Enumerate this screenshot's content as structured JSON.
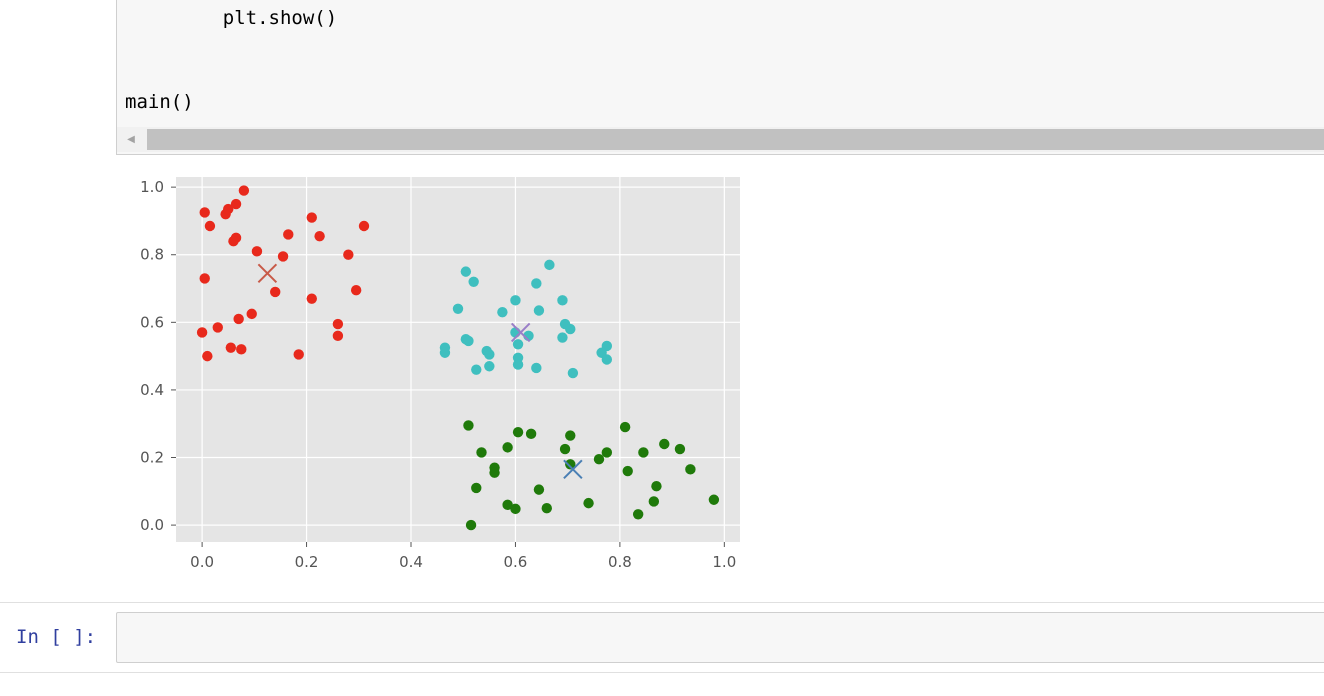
{
  "code_cell": {
    "lines": [
      "    plt.show()",
      "main()"
    ]
  },
  "input_cell": {
    "prompt": "In [ ]:",
    "value": ""
  },
  "chart_data": {
    "type": "scatter",
    "title": "",
    "xlabel": "",
    "ylabel": "",
    "xlim": [
      -0.05,
      1.03
    ],
    "ylim": [
      -0.05,
      1.03
    ],
    "x_ticks": [
      0.0,
      0.2,
      0.4,
      0.6,
      0.8,
      1.0
    ],
    "y_ticks": [
      0.0,
      0.2,
      0.4,
      0.6,
      0.8,
      1.0
    ],
    "x_tick_labels": [
      "0.0",
      "0.2",
      "0.4",
      "0.6",
      "0.8",
      "1.0"
    ],
    "y_tick_labels": [
      "0.0",
      "0.2",
      "0.4",
      "0.6",
      "0.8",
      "1.0"
    ],
    "grid": true,
    "background": "#e5e5e5",
    "series": [
      {
        "color": "#e8291c",
        "points": [
          [
            0.08,
            0.99
          ],
          [
            0.065,
            0.95
          ],
          [
            0.045,
            0.92
          ],
          [
            0.05,
            0.935
          ],
          [
            0.005,
            0.925
          ],
          [
            0.015,
            0.885
          ],
          [
            0.21,
            0.91
          ],
          [
            0.31,
            0.885
          ],
          [
            0.165,
            0.86
          ],
          [
            0.225,
            0.855
          ],
          [
            0.065,
            0.85
          ],
          [
            0.06,
            0.84
          ],
          [
            0.105,
            0.81
          ],
          [
            0.155,
            0.795
          ],
          [
            0.28,
            0.8
          ],
          [
            0.005,
            0.73
          ],
          [
            0.14,
            0.69
          ],
          [
            0.295,
            0.695
          ],
          [
            0.21,
            0.67
          ],
          [
            0.095,
            0.625
          ],
          [
            0.07,
            0.61
          ],
          [
            0.26,
            0.595
          ],
          [
            0.03,
            0.585
          ],
          [
            0.0,
            0.57
          ],
          [
            0.26,
            0.56
          ],
          [
            0.055,
            0.525
          ],
          [
            0.075,
            0.52
          ],
          [
            0.185,
            0.505
          ],
          [
            0.01,
            0.5
          ]
        ]
      },
      {
        "color": "#3fbfbf",
        "points": [
          [
            0.665,
            0.77
          ],
          [
            0.505,
            0.75
          ],
          [
            0.52,
            0.72
          ],
          [
            0.64,
            0.715
          ],
          [
            0.6,
            0.665
          ],
          [
            0.69,
            0.665
          ],
          [
            0.49,
            0.64
          ],
          [
            0.645,
            0.635
          ],
          [
            0.575,
            0.63
          ],
          [
            0.695,
            0.595
          ],
          [
            0.705,
            0.58
          ],
          [
            0.6,
            0.57
          ],
          [
            0.625,
            0.56
          ],
          [
            0.505,
            0.55
          ],
          [
            0.69,
            0.555
          ],
          [
            0.51,
            0.545
          ],
          [
            0.605,
            0.535
          ],
          [
            0.465,
            0.525
          ],
          [
            0.775,
            0.53
          ],
          [
            0.465,
            0.51
          ],
          [
            0.545,
            0.515
          ],
          [
            0.55,
            0.505
          ],
          [
            0.765,
            0.51
          ],
          [
            0.605,
            0.495
          ],
          [
            0.775,
            0.49
          ],
          [
            0.605,
            0.475
          ],
          [
            0.55,
            0.47
          ],
          [
            0.525,
            0.46
          ],
          [
            0.64,
            0.465
          ],
          [
            0.71,
            0.45
          ]
        ]
      },
      {
        "color": "#1f7a0a",
        "points": [
          [
            0.51,
            0.295
          ],
          [
            0.81,
            0.29
          ],
          [
            0.605,
            0.275
          ],
          [
            0.63,
            0.27
          ],
          [
            0.705,
            0.265
          ],
          [
            0.885,
            0.24
          ],
          [
            0.585,
            0.23
          ],
          [
            0.695,
            0.225
          ],
          [
            0.915,
            0.225
          ],
          [
            0.535,
            0.215
          ],
          [
            0.845,
            0.215
          ],
          [
            0.775,
            0.215
          ],
          [
            0.76,
            0.195
          ],
          [
            0.705,
            0.18
          ],
          [
            0.56,
            0.17
          ],
          [
            0.935,
            0.165
          ],
          [
            0.815,
            0.16
          ],
          [
            0.56,
            0.155
          ],
          [
            0.87,
            0.115
          ],
          [
            0.525,
            0.11
          ],
          [
            0.645,
            0.105
          ],
          [
            0.98,
            0.075
          ],
          [
            0.865,
            0.07
          ],
          [
            0.74,
            0.065
          ],
          [
            0.585,
            0.06
          ],
          [
            0.6,
            0.048
          ],
          [
            0.66,
            0.05
          ],
          [
            0.835,
            0.032
          ],
          [
            0.515,
            0.0
          ]
        ]
      }
    ],
    "centroids": [
      {
        "color": "#c85a48",
        "point": [
          0.125,
          0.745
        ]
      },
      {
        "color": "#9a7ec8",
        "point": [
          0.61,
          0.57
        ]
      },
      {
        "color": "#4a7fb4",
        "point": [
          0.71,
          0.165
        ]
      }
    ]
  }
}
